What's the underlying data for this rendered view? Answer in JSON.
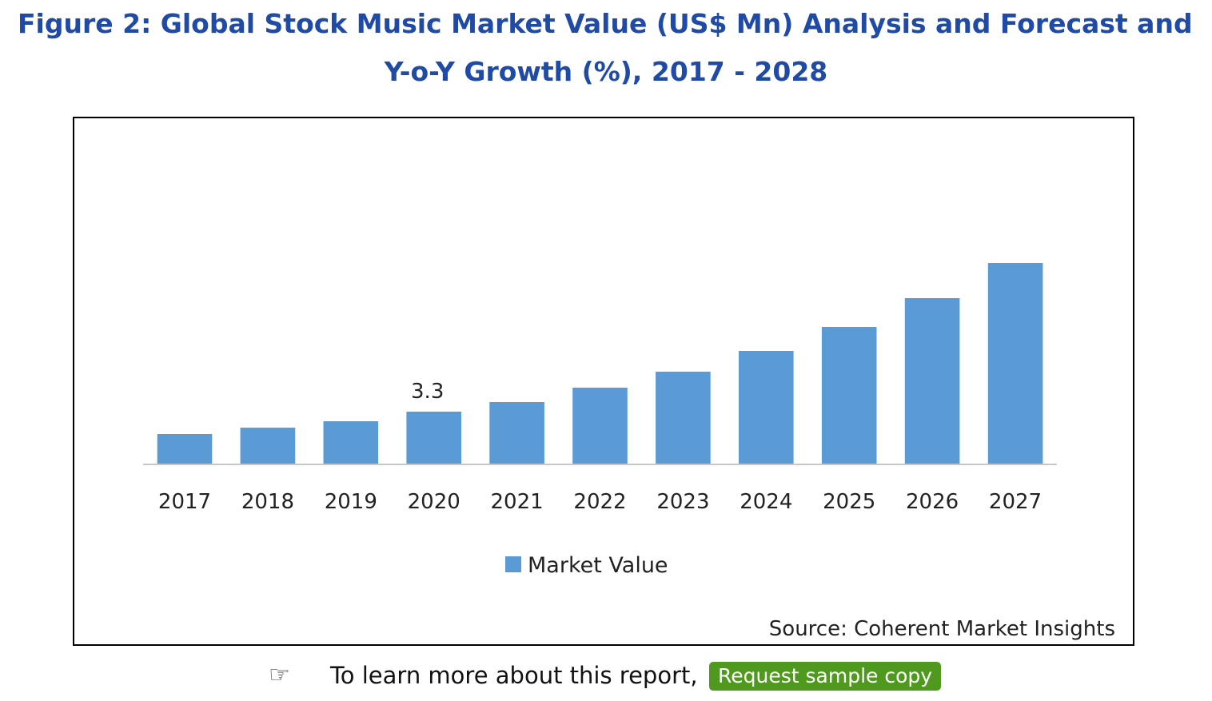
{
  "figure": {
    "title_line1": "Figure 2: Global Stock Music Market Value (US$ Mn) Analysis and Forecast and",
    "title_line2": "Y-o-Y Growth (%), 2017 - 2028"
  },
  "chart_data": {
    "type": "bar",
    "categories": [
      "2017",
      "2018",
      "2019",
      "2020",
      "2021",
      "2022",
      "2023",
      "2024",
      "2025",
      "2026",
      "2027"
    ],
    "series": [
      {
        "name": "Market Value",
        "values": [
          1.9,
          2.3,
          2.7,
          3.3,
          3.9,
          4.8,
          5.8,
          7.1,
          8.6,
          10.4,
          12.6
        ]
      }
    ],
    "data_labels": [
      {
        "category": "2020",
        "text": "3.3"
      }
    ],
    "color": "#5b9bd5",
    "title": "",
    "xlabel": "",
    "ylabel": "",
    "ylim": [
      0,
      20
    ],
    "grid": false,
    "legend_position": "bottom-center",
    "source": "Source: Coherent Market Insights"
  },
  "cta": {
    "icon": "pointing-hand-icon",
    "glyph": "☞",
    "text": "To learn more about this report,",
    "button_label": "Request sample copy",
    "button_color": "#4f9a1e"
  }
}
